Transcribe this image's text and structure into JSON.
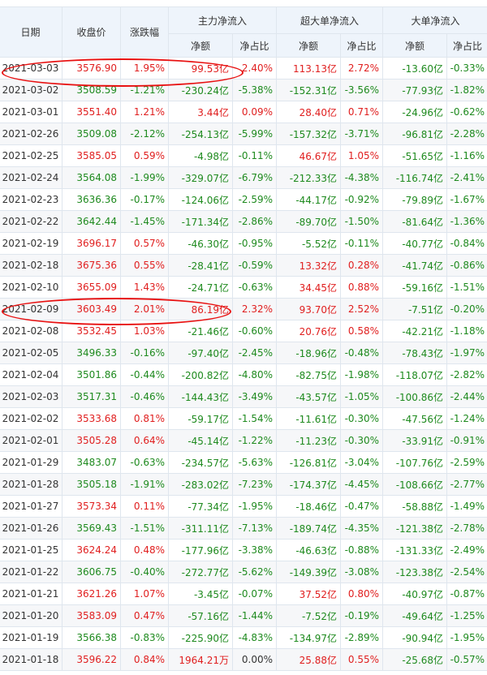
{
  "header": {
    "date": "日期",
    "close": "收盘价",
    "change": "涨跌幅",
    "main_flow": "主力净流入",
    "super_flow": "超大单净流入",
    "big_flow": "大单净流入",
    "net_amount": "净额",
    "net_ratio": "净占比"
  },
  "colors": {
    "up": "#e01e1e",
    "down": "#1e8a1e",
    "highlight": "#e81010",
    "header_bg": "#eef4fb"
  },
  "rows": [
    [
      "2021-03-03",
      "3576.90",
      "1.95%",
      "99.53亿",
      "2.40%",
      "113.13亿",
      "2.72%",
      "-13.60亿",
      "-0.33%"
    ],
    [
      "2021-03-02",
      "3508.59",
      "-1.21%",
      "-230.24亿",
      "-5.38%",
      "-152.31亿",
      "-3.56%",
      "-77.93亿",
      "-1.82%"
    ],
    [
      "2021-03-01",
      "3551.40",
      "1.21%",
      "3.44亿",
      "0.09%",
      "28.40亿",
      "0.71%",
      "-24.96亿",
      "-0.62%"
    ],
    [
      "2021-02-26",
      "3509.08",
      "-2.12%",
      "-254.13亿",
      "-5.99%",
      "-157.32亿",
      "-3.71%",
      "-96.81亿",
      "-2.28%"
    ],
    [
      "2021-02-25",
      "3585.05",
      "0.59%",
      "-4.98亿",
      "-0.11%",
      "46.67亿",
      "1.05%",
      "-51.65亿",
      "-1.16%"
    ],
    [
      "2021-02-24",
      "3564.08",
      "-1.99%",
      "-329.07亿",
      "-6.79%",
      "-212.33亿",
      "-4.38%",
      "-116.74亿",
      "-2.41%"
    ],
    [
      "2021-02-23",
      "3636.36",
      "-0.17%",
      "-124.06亿",
      "-2.59%",
      "-44.17亿",
      "-0.92%",
      "-79.89亿",
      "-1.67%"
    ],
    [
      "2021-02-22",
      "3642.44",
      "-1.45%",
      "-171.34亿",
      "-2.86%",
      "-89.70亿",
      "-1.50%",
      "-81.64亿",
      "-1.36%"
    ],
    [
      "2021-02-19",
      "3696.17",
      "0.57%",
      "-46.30亿",
      "-0.95%",
      "-5.52亿",
      "-0.11%",
      "-40.77亿",
      "-0.84%"
    ],
    [
      "2021-02-18",
      "3675.36",
      "0.55%",
      "-28.41亿",
      "-0.59%",
      "13.32亿",
      "0.28%",
      "-41.74亿",
      "-0.86%"
    ],
    [
      "2021-02-10",
      "3655.09",
      "1.43%",
      "-24.71亿",
      "-0.63%",
      "34.45亿",
      "0.88%",
      "-59.16亿",
      "-1.51%"
    ],
    [
      "2021-02-09",
      "3603.49",
      "2.01%",
      "86.19亿",
      "2.32%",
      "93.70亿",
      "2.52%",
      "-7.51亿",
      "-0.20%"
    ],
    [
      "2021-02-08",
      "3532.45",
      "1.03%",
      "-21.46亿",
      "-0.60%",
      "20.76亿",
      "0.58%",
      "-42.21亿",
      "-1.18%"
    ],
    [
      "2021-02-05",
      "3496.33",
      "-0.16%",
      "-97.40亿",
      "-2.45%",
      "-18.96亿",
      "-0.48%",
      "-78.43亿",
      "-1.97%"
    ],
    [
      "2021-02-04",
      "3501.86",
      "-0.44%",
      "-200.82亿",
      "-4.80%",
      "-82.75亿",
      "-1.98%",
      "-118.07亿",
      "-2.82%"
    ],
    [
      "2021-02-03",
      "3517.31",
      "-0.46%",
      "-144.43亿",
      "-3.49%",
      "-43.57亿",
      "-1.05%",
      "-100.86亿",
      "-2.44%"
    ],
    [
      "2021-02-02",
      "3533.68",
      "0.81%",
      "-59.17亿",
      "-1.54%",
      "-11.61亿",
      "-0.30%",
      "-47.56亿",
      "-1.24%"
    ],
    [
      "2021-02-01",
      "3505.28",
      "0.64%",
      "-45.14亿",
      "-1.22%",
      "-11.23亿",
      "-0.30%",
      "-33.91亿",
      "-0.91%"
    ],
    [
      "2021-01-29",
      "3483.07",
      "-0.63%",
      "-234.57亿",
      "-5.63%",
      "-126.81亿",
      "-3.04%",
      "-107.76亿",
      "-2.59%"
    ],
    [
      "2021-01-28",
      "3505.18",
      "-1.91%",
      "-283.02亿",
      "-7.23%",
      "-174.37亿",
      "-4.45%",
      "-108.66亿",
      "-2.77%"
    ],
    [
      "2021-01-27",
      "3573.34",
      "0.11%",
      "-77.34亿",
      "-1.95%",
      "-18.46亿",
      "-0.47%",
      "-58.88亿",
      "-1.49%"
    ],
    [
      "2021-01-26",
      "3569.43",
      "-1.51%",
      "-311.11亿",
      "-7.13%",
      "-189.74亿",
      "-4.35%",
      "-121.38亿",
      "-2.78%"
    ],
    [
      "2021-01-25",
      "3624.24",
      "0.48%",
      "-177.96亿",
      "-3.38%",
      "-46.63亿",
      "-0.88%",
      "-131.33亿",
      "-2.49%"
    ],
    [
      "2021-01-22",
      "3606.75",
      "-0.40%",
      "-272.77亿",
      "-5.62%",
      "-149.39亿",
      "-3.08%",
      "-123.38亿",
      "-2.54%"
    ],
    [
      "2021-01-21",
      "3621.26",
      "1.07%",
      "-3.45亿",
      "-0.07%",
      "37.52亿",
      "0.80%",
      "-40.97亿",
      "-0.87%"
    ],
    [
      "2021-01-20",
      "3583.09",
      "0.47%",
      "-57.16亿",
      "-1.44%",
      "-7.52亿",
      "-0.19%",
      "-49.64亿",
      "-1.25%"
    ],
    [
      "2021-01-19",
      "3566.38",
      "-0.83%",
      "-225.90亿",
      "-4.83%",
      "-134.97亿",
      "-2.89%",
      "-90.94亿",
      "-1.95%"
    ],
    [
      "2021-01-18",
      "3596.22",
      "0.84%",
      "1964.21万",
      "0.00%",
      "25.88亿",
      "0.55%",
      "-25.68亿",
      "-0.57%"
    ]
  ],
  "highlighted_dates": [
    "2021-03-03",
    "2021-02-09"
  ]
}
